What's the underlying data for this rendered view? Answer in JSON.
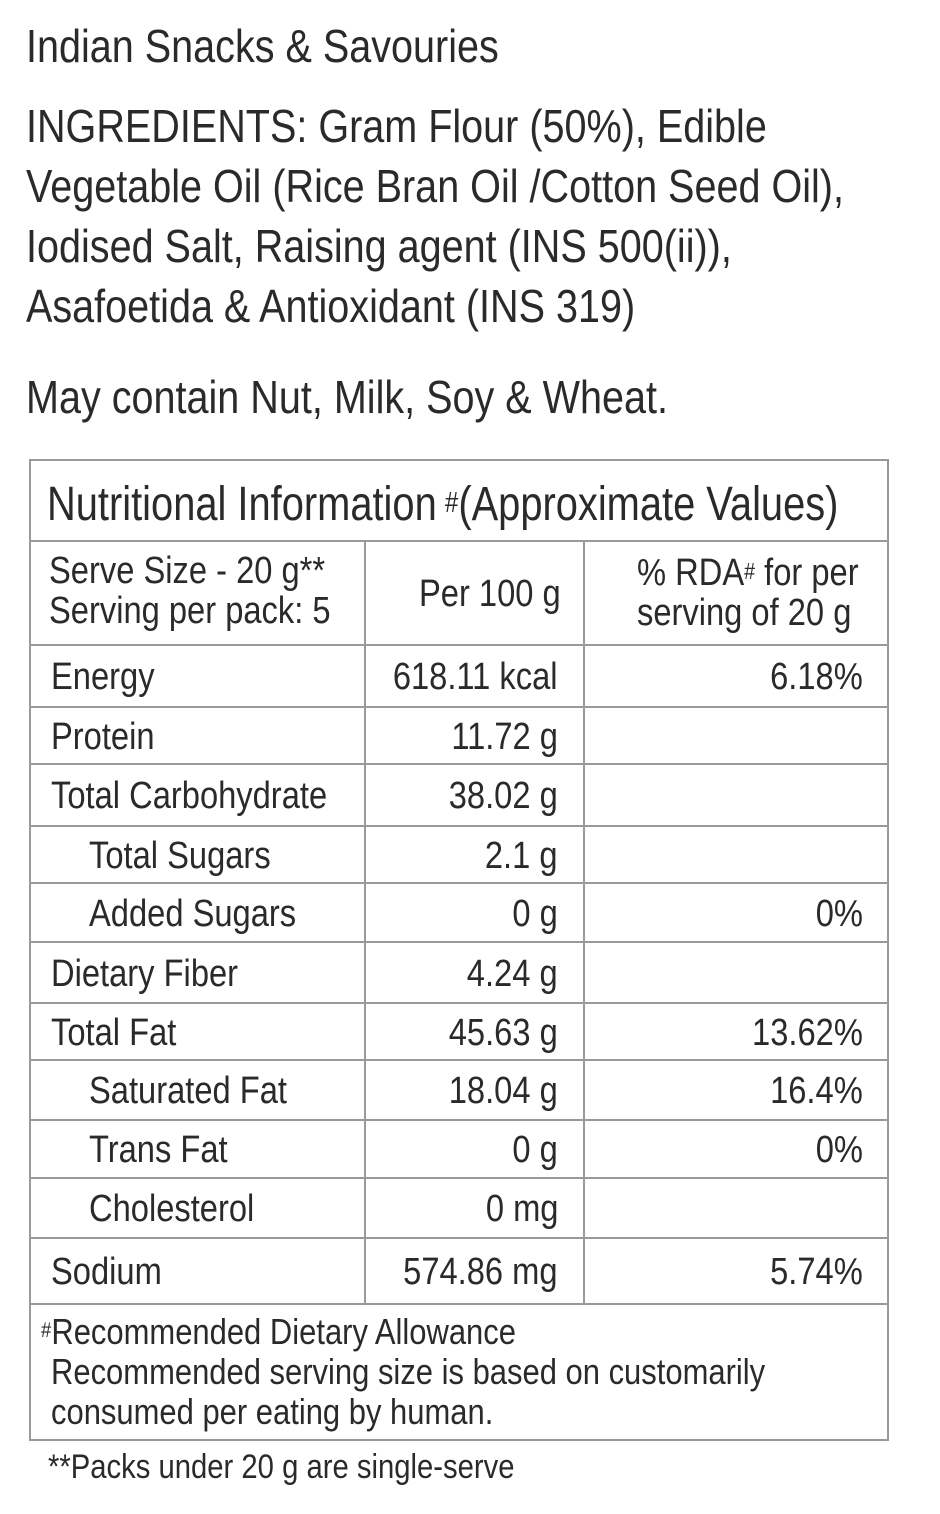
{
  "product_category": "Indian Snacks & Savouries",
  "ingredients": {
    "lines": [
      "INGREDIENTS: Gram Flour (50%), Edible",
      "Vegetable Oil (Rice Bran Oil /Cotton Seed Oil),",
      "Iodised Salt, Raising agent (INS 500(ii)),",
      "Asafoetida & Antioxidant (INS 319)"
    ]
  },
  "allergen_statement": "May contain Nut, Milk, Soy & Wheat.",
  "nutrition": {
    "title": "Nutritional Information",
    "title_note_mark": "#",
    "title_note": "(Approximate Values)",
    "header": {
      "serve_size": "Serve Size - 20 g**",
      "servings_per_pack": "Serving per pack: 5",
      "per_100g": "Per 100 g",
      "rda_part1": "% RDA",
      "rda_mark": "#",
      "rda_part2": " for per",
      "rda_line2": "serving of 20 g"
    },
    "rows": [
      {
        "nutrient": "Energy",
        "per_100g": "618.11 kcal",
        "rda": "6.18%",
        "indent": false
      },
      {
        "nutrient": "Protein",
        "per_100g": "11.72 g",
        "rda": "",
        "indent": false
      },
      {
        "nutrient": "Total Carbohydrate",
        "per_100g": "38.02 g",
        "rda": "",
        "indent": false
      },
      {
        "nutrient": "Total Sugars",
        "per_100g": "2.1 g",
        "rda": "",
        "indent": true
      },
      {
        "nutrient": "Added Sugars",
        "per_100g": "0 g",
        "rda": "0%",
        "indent": true
      },
      {
        "nutrient": "Dietary Fiber",
        "per_100g": "4.24 g",
        "rda": "",
        "indent": false
      },
      {
        "nutrient": "Total Fat",
        "per_100g": "45.63 g",
        "rda": "13.62%",
        "indent": false
      },
      {
        "nutrient": "Saturated Fat",
        "per_100g": "18.04 g",
        "rda": "16.4%",
        "indent": true
      },
      {
        "nutrient": "Trans Fat",
        "per_100g": "0 g",
        "rda": "0%",
        "indent": true
      },
      {
        "nutrient": "Cholesterol",
        "per_100g": "0 mg",
        "rda": "",
        "indent": true
      },
      {
        "nutrient": "Sodium",
        "per_100g": "574.86 mg",
        "rda": "5.74%",
        "indent": false
      }
    ],
    "footnote_mark": "#",
    "footnote_line1": "Recommended Dietary Allowance",
    "footnote_line2": "Recommended serving size is based on customarily",
    "footnote_line3": "consumed per eating by human."
  },
  "pack_note": "**Packs under 20 g are single-serve"
}
